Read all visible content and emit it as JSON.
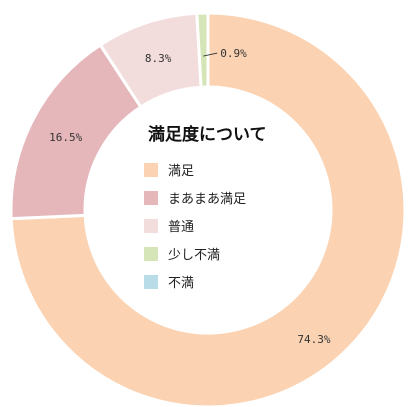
{
  "chart_data": {
    "type": "pie",
    "style": "donut",
    "title": "満足度について",
    "series": [
      {
        "name": "満足",
        "value": 74.3,
        "label": "74.3%",
        "color": "#fbd3b3"
      },
      {
        "name": "まあまあ満足",
        "value": 16.5,
        "label": "16.5%",
        "color": "#e5b7bb"
      },
      {
        "name": "普通",
        "value": 8.3,
        "label": "8.3%",
        "color": "#f3dcdc"
      },
      {
        "name": "少し不満",
        "value": 0.9,
        "label": "0.9%",
        "color": "#d5e5b7"
      },
      {
        "name": "不満",
        "value": 0.0,
        "label": "",
        "color": "#b8dde9"
      }
    ],
    "legend_placement": "center",
    "start_angle": "12 o'clock",
    "direction": "clockwise"
  }
}
